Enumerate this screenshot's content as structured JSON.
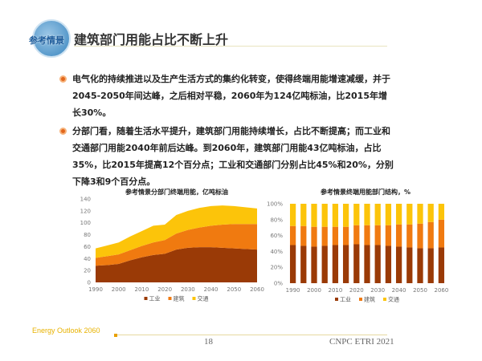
{
  "logo_text": "参考情景",
  "title": "建筑部门用能占比不断上升",
  "bullets": [
    "电气化的持续推进以及生产生活方式的集约化转变，使得终端用能增速减缓，并于2045-2050年间达峰，之后相对平稳，2060年为124亿吨标油，比2015年增长30%。",
    "分部门看，随着生活水平提升，建筑部门用能持续增长，占比不断提高；而工业和交通部门用能2040年前后达峰。到2060年，建筑部门用能43亿吨标油，占比35%，比2015年提高12个百分点；工业和交通部门分别占比45%和20%，分别下降3和9个百分点。"
  ],
  "colors": {
    "industry": "#9a3a06",
    "building": "#f07a10",
    "transport": "#fcc40a"
  },
  "chart_data": [
    {
      "type": "area",
      "stacked": true,
      "title": "参考情景分部门终端用能，亿吨标油",
      "x": [
        1990,
        1995,
        2000,
        2005,
        2010,
        2015,
        2020,
        2025,
        2030,
        2035,
        2040,
        2045,
        2050,
        2055,
        2060
      ],
      "xticks": [
        "1990",
        "2000",
        "2010",
        "2020",
        "2030",
        "2040",
        "2050",
        "2060"
      ],
      "yticks": [
        "0",
        "20",
        "40",
        "60",
        "80",
        "100",
        "120",
        "140"
      ],
      "ylim": [
        0,
        140
      ],
      "series": [
        {
          "name": "工业",
          "values": [
            28,
            29,
            31,
            37,
            42,
            46,
            48,
            55,
            58,
            59,
            59,
            58,
            57,
            56,
            55
          ]
        },
        {
          "name": "建筑",
          "values": [
            13,
            15,
            16,
            17,
            19,
            21,
            23,
            27,
            30,
            33,
            36,
            39,
            41,
            42,
            43
          ]
        },
        {
          "name": "交通",
          "values": [
            16,
            18,
            20,
            23,
            25,
            28,
            26,
            31,
            32,
            33,
            33,
            32,
            30,
            28,
            26
          ]
        }
      ],
      "legend": "bottom"
    },
    {
      "type": "bar",
      "stacked": true,
      "title": "参考情景终端用能部门结构，%",
      "x": [
        1990,
        1995,
        2000,
        2005,
        2010,
        2015,
        2020,
        2025,
        2030,
        2035,
        2040,
        2045,
        2050,
        2055,
        2060
      ],
      "xticks": [
        "1990",
        "2000",
        "2010",
        "2020",
        "2030",
        "2040",
        "2050",
        "2060"
      ],
      "yticks": [
        "0%",
        "20%",
        "40%",
        "60%",
        "80%",
        "100%"
      ],
      "ylim": [
        0,
        100
      ],
      "series": [
        {
          "name": "工业",
          "values": [
            48,
            47,
            46,
            47,
            48,
            48,
            49,
            48,
            48,
            47,
            46,
            45,
            44,
            44,
            45
          ]
        },
        {
          "name": "建筑",
          "values": [
            24,
            25,
            25,
            24,
            23,
            23,
            24,
            25,
            25,
            26,
            28,
            29,
            31,
            33,
            35
          ]
        },
        {
          "name": "交通",
          "values": [
            28,
            28,
            29,
            29,
            29,
            29,
            27,
            27,
            27,
            27,
            26,
            26,
            25,
            23,
            20
          ]
        }
      ],
      "legend": "bottom"
    }
  ],
  "footer": {
    "left": "Energy Outlook 2060",
    "page": "18",
    "org": "CNPC ETRI 2021"
  }
}
